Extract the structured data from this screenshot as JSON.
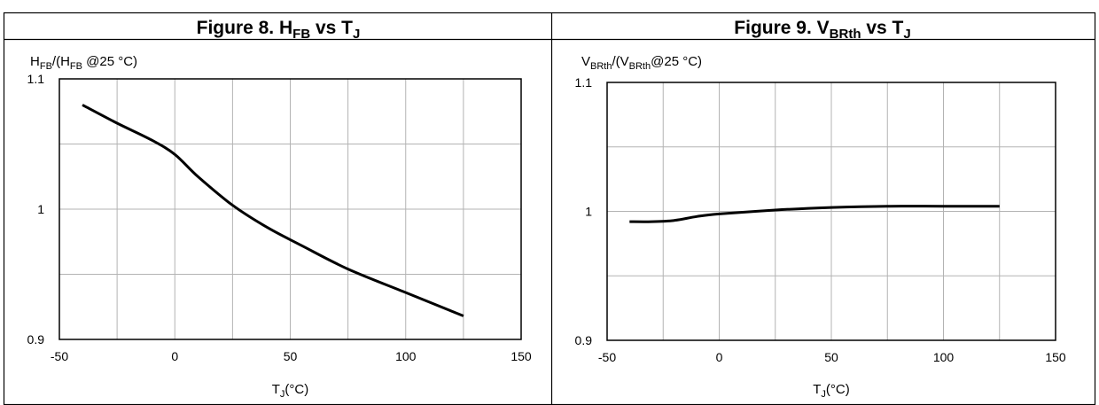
{
  "chart_data": [
    {
      "type": "line",
      "title": {
        "pre": "Figure 8. H",
        "sub": "FB",
        "mid": " vs T",
        "sub2": "J"
      },
      "ylabel": {
        "p1": "H",
        "s1": "FB",
        "p2": "/(H",
        "s2": "FB",
        "p3": "  @25 °C)"
      },
      "xlabel": {
        "p1": "T",
        "s1": "J",
        "p2": "(°C)"
      },
      "xlim": [
        -50,
        150
      ],
      "ylim": [
        0.9,
        1.1
      ],
      "xticks": [
        -50,
        0,
        50,
        100,
        150
      ],
      "xtick_labels": [
        "-50",
        "0",
        "50",
        "100",
        "150"
      ],
      "yticks": [
        0.9,
        1,
        1.1
      ],
      "ytick_labels": [
        "0.9",
        "1",
        "1.1"
      ],
      "grid": true,
      "series": [
        {
          "color": "#000000",
          "x": [
            -40,
            -25,
            -10,
            0,
            10,
            25,
            40,
            55,
            75,
            100,
            125
          ],
          "y": [
            1.08,
            1.066,
            1.053,
            1.042,
            1.025,
            1.003,
            0.986,
            0.972,
            0.954,
            0.936,
            0.918
          ]
        }
      ]
    },
    {
      "type": "line",
      "title": {
        "pre": "Figure 9. V",
        "sub": "BRth",
        "mid": " vs T",
        "sub2": "J"
      },
      "ylabel": {
        "p1": "V",
        "s1": "BRth",
        "p2": "/(V",
        "s2": "BRth",
        "p3": "@25 °C)"
      },
      "xlabel": {
        "p1": "T",
        "s1": "J",
        "p2": "(°C)"
      },
      "xlim": [
        -50,
        150
      ],
      "ylim": [
        0.9,
        1.1
      ],
      "xticks": [
        -50,
        0,
        50,
        100,
        150
      ],
      "xtick_labels": [
        "-50",
        "0",
        "50",
        "100",
        "150"
      ],
      "yticks": [
        0.9,
        1,
        1.1
      ],
      "ytick_labels": [
        "0.9",
        "1",
        "1.1"
      ],
      "grid": true,
      "series": [
        {
          "color": "#000000",
          "x": [
            -40,
            -30,
            -20,
            -10,
            0,
            25,
            50,
            75,
            100,
            125
          ],
          "y": [
            0.992,
            0.992,
            0.993,
            0.996,
            0.998,
            1.001,
            1.003,
            1.004,
            1.004,
            1.004
          ]
        }
      ]
    }
  ]
}
